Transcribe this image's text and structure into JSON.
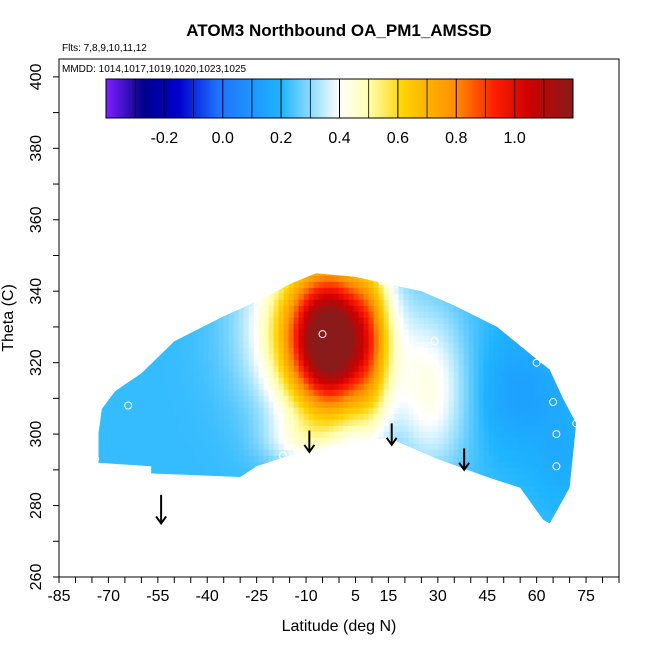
{
  "chart_data": {
    "type": "heatmap",
    "title": "ATOM3 Northbound OA_PM1_AMSSD",
    "flights_note": "Flts: 7,8,9,10,11,12",
    "dates_note": "MMDD: 1014,1017,1019,1020,1023,1025",
    "xlabel": "Latitude (deg N)",
    "ylabel": "Theta (C)",
    "xlim": [
      -85,
      85
    ],
    "ylim": [
      260,
      405
    ],
    "x_tick_values": [
      -85,
      -70,
      -55,
      -40,
      -25,
      -10,
      5,
      15,
      30,
      45,
      60,
      75
    ],
    "x_tick_labels": [
      "-85",
      "-70",
      "-55",
      "-40",
      "-25",
      "-10",
      "5",
      "15",
      "30",
      "45",
      "60",
      "75"
    ],
    "y_tick_values": [
      260,
      280,
      300,
      320,
      340,
      360,
      380,
      400
    ],
    "y_tick_labels": [
      "260",
      "280",
      "300",
      "320",
      "340",
      "360",
      "380",
      "400"
    ],
    "colorbar": {
      "range": [
        -0.4,
        1.2
      ],
      "tick_values": [
        -0.2,
        0.0,
        0.2,
        0.4,
        0.6,
        0.8,
        1.0
      ],
      "tick_labels": [
        "-0.2",
        "0.0",
        "0.2",
        "0.4",
        "0.6",
        "0.8",
        "1.0"
      ],
      "stops": [
        {
          "v": -0.4,
          "color": "#7f1fff"
        },
        {
          "v": -0.27,
          "color": "#00008b"
        },
        {
          "v": -0.15,
          "color": "#0000cd"
        },
        {
          "v": -0.02,
          "color": "#1e6fff"
        },
        {
          "v": 0.2,
          "color": "#1eb4ff"
        },
        {
          "v": 0.33,
          "color": "#aee6ff"
        },
        {
          "v": 0.4,
          "color": "#ffffff"
        },
        {
          "v": 0.5,
          "color": "#ffffb0"
        },
        {
          "v": 0.62,
          "color": "#ffd200"
        },
        {
          "v": 0.8,
          "color": "#ff8c00"
        },
        {
          "v": 0.93,
          "color": "#ff1e00"
        },
        {
          "v": 1.05,
          "color": "#cd0000"
        },
        {
          "v": 1.2,
          "color": "#8b1a1a"
        }
      ]
    },
    "domain_outline": [
      [
        -73,
        292
      ],
      [
        -57,
        291
      ],
      [
        -57,
        289
      ],
      [
        -30,
        288
      ],
      [
        -25,
        291
      ],
      [
        -15,
        294
      ],
      [
        0,
        297
      ],
      [
        15,
        299
      ],
      [
        30,
        293
      ],
      [
        45,
        288
      ],
      [
        55,
        285
      ],
      [
        62,
        276
      ],
      [
        64,
        275
      ],
      [
        70,
        285
      ],
      [
        72,
        303
      ],
      [
        68,
        310
      ],
      [
        64,
        318
      ],
      [
        60,
        321
      ],
      [
        48,
        330
      ],
      [
        35,
        336
      ],
      [
        25,
        340
      ],
      [
        15,
        342
      ],
      [
        5,
        344
      ],
      [
        -7,
        345
      ],
      [
        -15,
        342
      ],
      [
        -23,
        338
      ],
      [
        -35,
        333
      ],
      [
        -50,
        326
      ],
      [
        -60,
        317
      ],
      [
        -68,
        312
      ],
      [
        -72,
        307
      ],
      [
        -73,
        300
      ]
    ],
    "field_background": 0.22,
    "field_features": [
      {
        "x": -2,
        "y": 325,
        "sx": 9,
        "sy": 14,
        "value": 0.8
      },
      {
        "x": -7,
        "y": 330,
        "sx": 14,
        "sy": 17,
        "value": 0.38
      },
      {
        "x": 10,
        "y": 325,
        "sx": 4,
        "sy": 22,
        "value": 0.18
      },
      {
        "x": 28,
        "y": 312,
        "sx": 8,
        "sy": 16,
        "value": 0.2
      },
      {
        "x": -12,
        "y": 298,
        "sx": 8,
        "sy": 5,
        "value": 0.12
      },
      {
        "x": 55,
        "y": 312,
        "sx": 10,
        "sy": 12,
        "value": -0.08
      },
      {
        "x": 68,
        "y": 293,
        "sx": 6,
        "sy": 10,
        "value": -0.04
      }
    ],
    "sample_points": [
      [
        -74,
        307
      ],
      [
        -64,
        308
      ],
      [
        -74,
        293
      ],
      [
        -17,
        294
      ],
      [
        -5,
        328
      ],
      [
        13,
        343
      ],
      [
        17,
        342
      ],
      [
        29,
        326
      ],
      [
        60,
        320
      ],
      [
        65,
        309
      ],
      [
        66,
        300
      ],
      [
        66,
        291
      ],
      [
        72,
        303
      ]
    ],
    "arrows": [
      {
        "x": -54,
        "y_top": 283,
        "y_tip": 275
      },
      {
        "x": -9,
        "y_top": 301,
        "y_tip": 295
      },
      {
        "x": 16,
        "y_top": 303,
        "y_tip": 297
      },
      {
        "x": 38,
        "y_top": 296,
        "y_tip": 290
      }
    ]
  }
}
